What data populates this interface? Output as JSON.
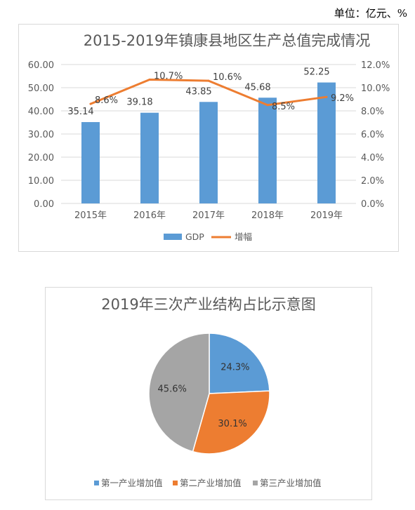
{
  "unit_label": "单位：亿元、%",
  "chart_data": [
    {
      "type": "bar",
      "title": "2015-2019年镇康县地区生产总值完成情况",
      "categories": [
        "2015年",
        "2016年",
        "2017年",
        "2018年",
        "2019年"
      ],
      "series": [
        {
          "name": "GDP",
          "type": "bar",
          "axis": "left",
          "values": [
            35.14,
            39.18,
            43.85,
            45.68,
            52.25
          ],
          "labels": [
            "35.14",
            "39.18",
            "43.85",
            "45.68",
            "52.25"
          ],
          "color": "#5b9bd5"
        },
        {
          "name": "增幅",
          "type": "line",
          "axis": "right",
          "values": [
            8.6,
            10.7,
            10.6,
            8.5,
            9.2
          ],
          "labels": [
            "8.6%",
            "10.7%",
            "10.6%",
            "8.5%",
            "9.2%"
          ],
          "color": "#ed7d31"
        }
      ],
      "y_left": {
        "min": 0,
        "max": 60,
        "ticks": [
          "0.00",
          "10.00",
          "20.00",
          "30.00",
          "40.00",
          "50.00",
          "60.00"
        ]
      },
      "y_right": {
        "min": 0,
        "max": 12,
        "ticks": [
          "0.0%",
          "2.0%",
          "4.0%",
          "6.0%",
          "8.0%",
          "10.0%",
          "12.0%"
        ]
      },
      "grid": true,
      "legend_position": "bottom"
    },
    {
      "type": "pie",
      "title": "2019年三次产业结构占比示意图",
      "slices": [
        {
          "name": "第一产业增加值",
          "value": 24.3,
          "label": "24.3%",
          "color": "#5b9bd5"
        },
        {
          "name": "第二产业增加值",
          "value": 30.1,
          "label": "30.1%",
          "color": "#ed7d31"
        },
        {
          "name": "第三产业增加值",
          "value": 45.6,
          "label": "45.6%",
          "color": "#a5a5a5"
        }
      ],
      "legend_position": "bottom"
    }
  ]
}
